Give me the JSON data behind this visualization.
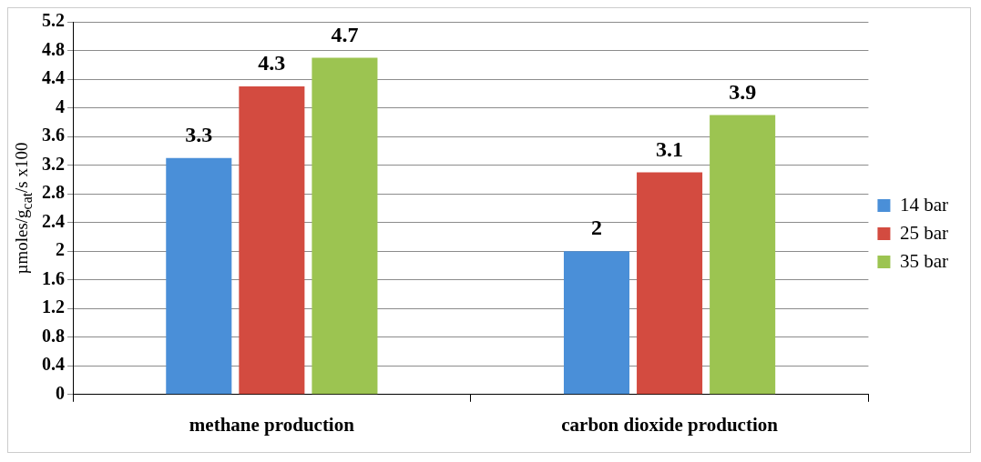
{
  "chart_data": {
    "type": "bar",
    "ylabel": "µmoles/g$_{cat}$/s x100",
    "categories": [
      "methane production",
      "carbon dioxide production"
    ],
    "series": [
      {
        "name": "14 bar",
        "color": "#4a8fd8",
        "values": [
          3.3,
          2
        ]
      },
      {
        "name": "25 bar",
        "color": "#d34b40",
        "values": [
          4.3,
          3.1
        ]
      },
      {
        "name": "35 bar",
        "color": "#9cc451",
        "values": [
          4.7,
          3.9
        ]
      }
    ],
    "ylim": [
      0,
      5.2
    ],
    "yticks": [
      0,
      0.4,
      0.8,
      1.2,
      1.6,
      2,
      2.4,
      2.8,
      3.2,
      3.6,
      4,
      4.4,
      4.8,
      5.2
    ],
    "grid": "y",
    "legend": "right",
    "data_labels": true
  }
}
